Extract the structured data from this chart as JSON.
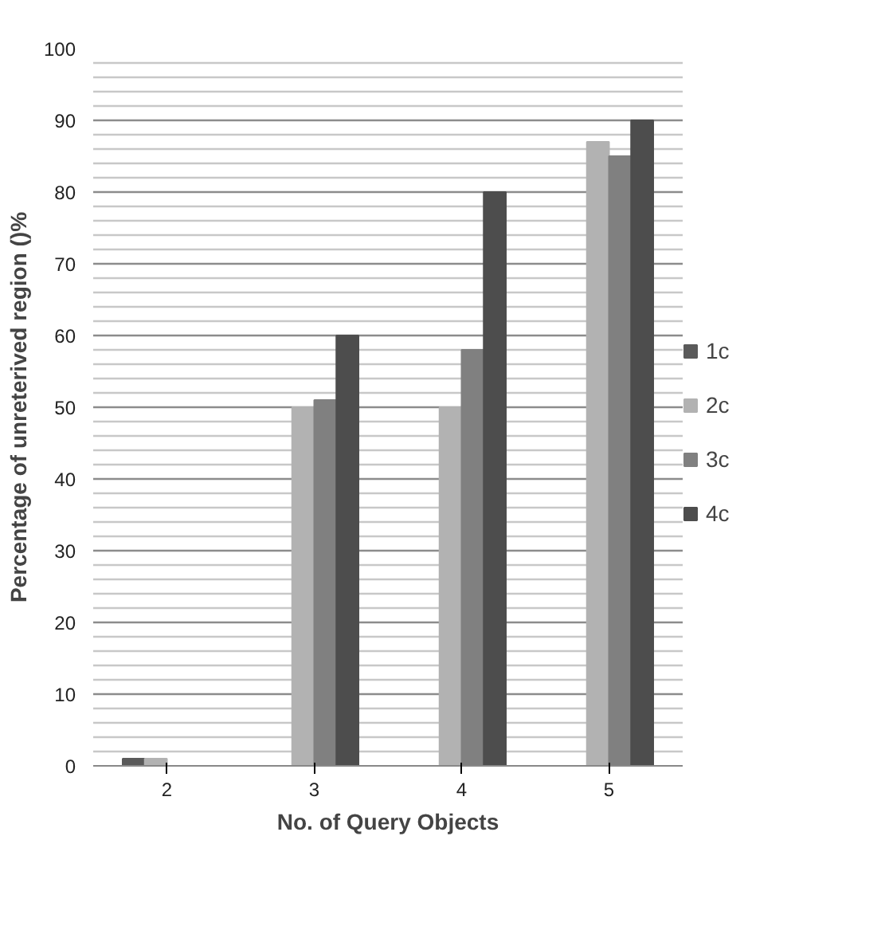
{
  "chart_data": {
    "type": "bar",
    "xlabel": "No. of Query Objects",
    "ylabel": "Percentage of unreterived region ()%",
    "categories": [
      "2",
      "3",
      "4",
      "5"
    ],
    "series": [
      {
        "name": "1c",
        "color": "#5a5a5a",
        "values": [
          1,
          0,
          0,
          0
        ]
      },
      {
        "name": "2c",
        "color": "#b2b2b2",
        "values": [
          1,
          50,
          50,
          87
        ]
      },
      {
        "name": "3c",
        "color": "#808080",
        "values": [
          0,
          51,
          58,
          85
        ]
      },
      {
        "name": "4c",
        "color": "#4d4d4d",
        "values": [
          0,
          60,
          80,
          90
        ]
      }
    ],
    "ylim": [
      0,
      100
    ],
    "yticks": [
      0,
      {
        "value": 2,
        "label": null
      },
      {
        "value": 4,
        "label": null
      },
      {
        "value": 6,
        "label": null
      },
      {
        "value": 8,
        "label": null
      },
      10,
      {
        "value": 12,
        "label": null
      },
      {
        "value": 14,
        "label": null
      },
      {
        "value": 16,
        "label": null
      },
      {
        "value": 18,
        "label": null
      },
      20,
      {
        "value": 22,
        "label": null
      },
      {
        "value": 24,
        "label": null
      },
      {
        "value": 26,
        "label": null
      },
      {
        "value": 28,
        "label": null
      },
      30,
      {
        "value": 32,
        "label": null
      },
      {
        "value": 34,
        "label": null
      },
      {
        "value": 36,
        "label": null
      },
      {
        "value": 38,
        "label": null
      },
      40,
      {
        "value": 42,
        "label": null
      },
      {
        "value": 44,
        "label": null
      },
      {
        "value": 46,
        "label": null
      },
      {
        "value": 48,
        "label": null
      },
      50,
      {
        "value": 52,
        "label": null
      },
      {
        "value": 54,
        "label": null
      },
      {
        "value": 56,
        "label": null
      },
      {
        "value": 58,
        "label": null
      },
      60,
      {
        "value": 62,
        "label": null
      },
      {
        "value": 64,
        "label": null
      },
      {
        "value": 66,
        "label": null
      },
      {
        "value": 68,
        "label": null
      },
      70,
      {
        "value": 72,
        "label": null
      },
      {
        "value": 74,
        "label": null
      },
      {
        "value": 76,
        "label": null
      },
      {
        "value": 78,
        "label": null
      },
      80,
      {
        "value": 82,
        "label": null
      },
      {
        "value": 84,
        "label": null
      },
      {
        "value": 86,
        "label": null
      },
      {
        "value": 88,
        "label": null
      },
      90,
      {
        "value": 92,
        "label": null
      },
      {
        "value": 94,
        "label": null
      },
      {
        "value": 96,
        "label": null
      },
      {
        "value": 98,
        "label": null
      },
      100
    ],
    "grid": "y",
    "legend": "right"
  }
}
